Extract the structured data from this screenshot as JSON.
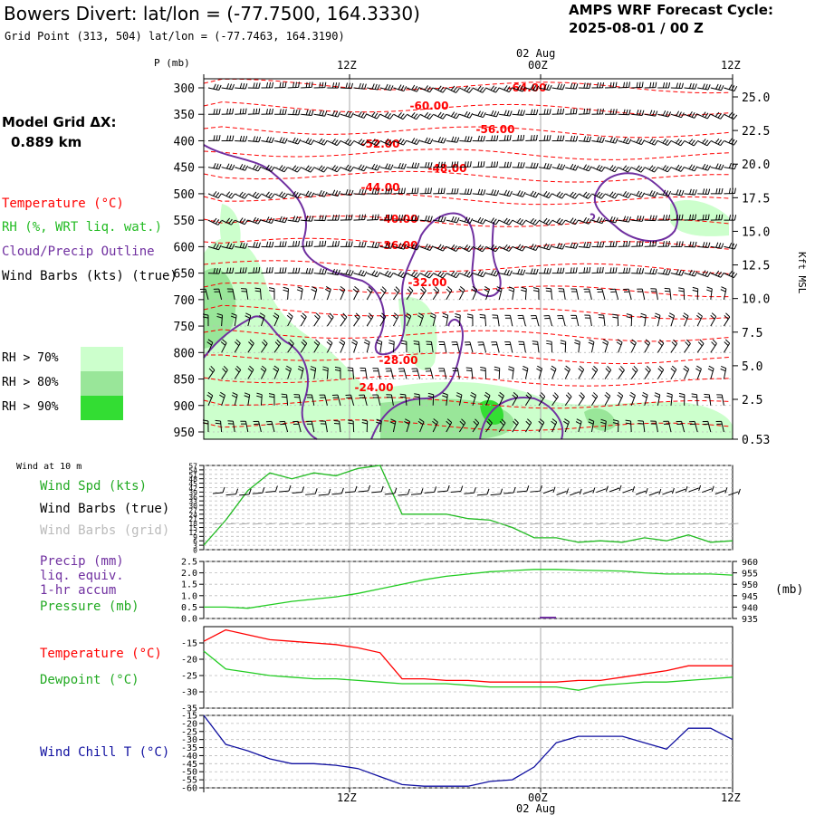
{
  "header": {
    "title": "Bowers Divert:  lat/lon = (-77.7500, 164.3330)",
    "subtitle": "Grid Point (313, 504) lat/lon = (-77.7463, 164.3190)",
    "cycle_label": "AMPS WRF Forecast Cycle:",
    "cycle_value": "2025-08-01 / 00  Z"
  },
  "sidebar": {
    "model_grid_label": "Model Grid ΔX:",
    "model_grid_value": "0.889 km",
    "legend_temperature": "Temperature (°C)",
    "legend_rh": "RH (%, WRT liq. wat.)",
    "legend_cloud": "Cloud/Precip Outline",
    "legend_wind": "Wind Barbs (kts) (true)",
    "rh70": "RH > 70%",
    "rh80": "RH > 80%",
    "rh90": "RH > 90%"
  },
  "colors": {
    "temperature": "#ff0000",
    "rh": "#22bb22",
    "cloud": "#7030a0",
    "rh70": "#ccffcc",
    "rh80": "#99e699",
    "rh90": "#33dd33",
    "wind_chill": "#1010a0",
    "dewpoint": "#22cc22",
    "pressure": "#22cc22"
  },
  "time_axis": {
    "top_date": "02 Aug",
    "bottom_date": "02 Aug",
    "ticks": [
      "12Z",
      "00Z",
      "12Z"
    ]
  },
  "chart_data": [
    {
      "type": "line",
      "name": "cross-section",
      "ylabel": "P (mb)",
      "ylabel_right": "Kft MSL",
      "y_ticks": [
        "300",
        "350",
        "400",
        "450",
        "500",
        "550",
        "600",
        "650",
        "700",
        "750",
        "800",
        "850",
        "900",
        "950"
      ],
      "y_ticks_right": [
        "25.0",
        "22.5",
        "20.0",
        "17.5",
        "15.0",
        "12.5",
        "10.0",
        "7.5",
        "5.0",
        "2.5",
        "0.53"
      ],
      "contour_labels": [
        "-64.00",
        "-60.00",
        "-56.00",
        "-52.00",
        "-48.00",
        "-44.00",
        "-40.00",
        "-36.00",
        "-32.00",
        "-28.00",
        "-24.00"
      ],
      "grid": true
    },
    {
      "type": "line",
      "name": "wind",
      "label_title": "Wind at 10 m",
      "label_speed": "Wind Spd (kts)",
      "label_barbs_true": "Wind Barbs (true)",
      "label_barbs_grid": "Wind Barbs (grid)",
      "y_ticks": [
        "57",
        "54",
        "51",
        "48",
        "45",
        "42",
        "39",
        "36",
        "33",
        "30",
        "27",
        "24",
        "21",
        "18",
        "15",
        "12",
        "9",
        "6",
        "3",
        "0"
      ],
      "ylim": [
        0,
        57
      ],
      "x": [
        0,
        1,
        2,
        3,
        4,
        5,
        6,
        7,
        8,
        9,
        10,
        11,
        12,
        13,
        14,
        15,
        16,
        17,
        18,
        19,
        20,
        21,
        22,
        23,
        24
      ],
      "wind_speed": [
        3,
        20,
        40,
        52,
        48,
        52,
        50,
        55,
        57,
        24,
        24,
        24,
        21,
        20,
        15,
        8,
        8,
        5,
        6,
        5,
        8,
        6,
        10,
        5,
        6
      ]
    },
    {
      "type": "line",
      "name": "precip-pressure",
      "label_precip": "Precip (mm)",
      "label_precip2": "liq. equiv.",
      "label_precip3": "1-hr accum",
      "label_pressure": "Pressure (mb)",
      "right_unit": "(mb)",
      "y_ticks": [
        "2.5",
        "2.0",
        "1.5",
        "1.0",
        "0.5",
        "0.0"
      ],
      "y_ticks_right": [
        "960",
        "955",
        "950",
        "945",
        "940",
        "935"
      ],
      "ylim": [
        0,
        2.5
      ],
      "ylim_right": [
        935,
        960
      ],
      "x": [
        0,
        1,
        2,
        3,
        4,
        5,
        6,
        7,
        8,
        9,
        10,
        11,
        12,
        13,
        14,
        15,
        16,
        17,
        18,
        19,
        20,
        21,
        22,
        23,
        24
      ],
      "pressure": [
        940,
        940,
        939.5,
        941,
        942.5,
        943.5,
        944.5,
        946,
        948,
        950,
        952,
        953.5,
        954.5,
        955.5,
        956,
        956.5,
        956.5,
        956.2,
        956,
        955.8,
        955,
        954.5,
        954.5,
        954.5,
        954
      ]
    },
    {
      "type": "line",
      "name": "temperature-dewpoint",
      "label_temp": "Temperature (°C)",
      "label_dew": "Dewpoint (°C)",
      "y_ticks": [
        "-15",
        "-20",
        "-25",
        "-30",
        "-35"
      ],
      "ylim": [
        -35,
        -10
      ],
      "x": [
        0,
        1,
        2,
        3,
        4,
        5,
        6,
        7,
        8,
        9,
        10,
        11,
        12,
        13,
        14,
        15,
        16,
        17,
        18,
        19,
        20,
        21,
        22,
        23,
        24
      ],
      "temperature": [
        -14.5,
        -11,
        -12.5,
        -14,
        -14.5,
        -15,
        -15.5,
        -16.5,
        -18,
        -26,
        -26,
        -26.5,
        -26.5,
        -27,
        -27,
        -27,
        -27,
        -26.5,
        -26.5,
        -25.5,
        -24.5,
        -23.5,
        -22,
        -22,
        -22
      ],
      "dewpoint": [
        -17.5,
        -23,
        -24,
        -25,
        -25.5,
        -26,
        -26,
        -26.5,
        -27,
        -27.5,
        -27.5,
        -27.5,
        -28,
        -28.5,
        -28.5,
        -28.5,
        -28.5,
        -29.5,
        -28,
        -27.5,
        -27,
        -27,
        -26.5,
        -26,
        -25.5
      ]
    },
    {
      "type": "line",
      "name": "wind-chill",
      "label": "Wind Chill T (°C)",
      "y_ticks": [
        "-15",
        "-20",
        "-25",
        "-30",
        "-35",
        "-40",
        "-45",
        "-50",
        "-55",
        "-60"
      ],
      "ylim": [
        -60,
        -15
      ],
      "x": [
        0,
        1,
        2,
        3,
        4,
        5,
        6,
        7,
        8,
        9,
        10,
        11,
        12,
        13,
        14,
        15,
        16,
        17,
        18,
        19,
        20,
        21,
        22,
        23,
        24
      ],
      "wind_chill": [
        -15,
        -33,
        -37,
        -42,
        -45,
        -45,
        -46,
        -48,
        -53,
        -58,
        -59,
        -59,
        -59,
        -56,
        -55,
        -47,
        -32,
        -28,
        -28,
        -28,
        -32,
        -36,
        -23,
        -23,
        -30
      ]
    }
  ]
}
